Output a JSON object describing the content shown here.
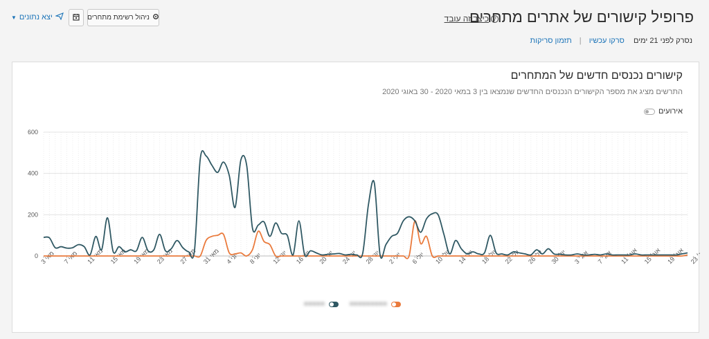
{
  "header": {
    "title": "פרופיל קישורים של אתרים מתחרים",
    "how_it_works": "כיצד זה עובד",
    "crawled_label": "נסרק לפני 21 ימים",
    "crawl_now": "סרקו עכשיו",
    "schedule_crawls": "תזמון סריקות",
    "manage_competitors": "ניהול רשימת מתחרים",
    "export": "יצא נתונים"
  },
  "panel": {
    "title": "קישורים נכנסים חדשים של המתחרים",
    "subtitle": "התרשים מציג את מספר הקישורים הנכנסים החדשים שנמצאו בין 3 במאי 2020 - 30 באוגי 2020",
    "events_label": "אירועים"
  },
  "colors": {
    "series_dark": "#2f5863",
    "series_orange": "#ea7a3c",
    "link": "#1a73b8",
    "grid": "#e6e6e6"
  },
  "chart_data": {
    "type": "line",
    "title": "קישורים נכנסים חדשים של המתחרים",
    "ylim": [
      0,
      600
    ],
    "yticks": [
      "0",
      "200",
      "400",
      "600"
    ],
    "x_tick_labels": [
      "מאי 3",
      "מאי 7",
      "מאי 11",
      "מאי 15",
      "מאי 19",
      "מאי 23",
      "מאי 27",
      "מאי 31",
      "יוני 4",
      "יוני 8",
      "יוני 12",
      "יוני 16",
      "יוני 20",
      "יוני 24",
      "יוני 28",
      "יולי 2",
      "יולי 6",
      "יולי 10",
      "יולי 14",
      "יולי 18",
      "יולי 22",
      "יולי 26",
      "יולי 30",
      "אוג׳ 3",
      "אוג׳ 7",
      "אוג׳ 11",
      "אוג׳ 15",
      "אוג׳ 19",
      "אוג׳ 23",
      "אוג׳ 27"
    ],
    "grid": true,
    "legend_position": "bottom-center",
    "series": [
      {
        "color": "dark",
        "values": [
          90,
          88,
          40,
          45,
          38,
          40,
          55,
          45,
          5,
          95,
          30,
          185,
          20,
          45,
          20,
          30,
          25,
          90,
          25,
          30,
          105,
          25,
          35,
          75,
          40,
          20,
          25,
          470,
          485,
          440,
          405,
          455,
          390,
          235,
          465,
          440,
          135,
          150,
          165,
          95,
          160,
          110,
          100,
          5,
          170,
          5,
          25,
          15,
          5,
          8,
          10,
          12,
          5,
          8,
          5,
          12,
          250,
          355,
          5,
          55,
          95,
          110,
          170,
          190,
          170,
          115,
          180,
          205,
          200,
          105,
          10,
          75,
          35,
          10,
          20,
          10,
          15,
          100,
          15,
          10,
          5,
          20,
          15,
          10,
          5,
          30,
          10,
          35,
          10,
          8,
          5,
          5,
          10,
          5,
          5,
          8,
          5,
          10,
          5,
          5,
          5,
          5,
          10,
          5,
          5,
          5,
          5,
          5,
          5,
          5,
          10,
          15
        ]
      },
      {
        "color": "orange",
        "values": [
          0,
          0,
          0,
          0,
          0,
          0,
          0,
          0,
          0,
          0,
          0,
          0,
          0,
          0,
          0,
          0,
          0,
          0,
          0,
          0,
          0,
          0,
          0,
          0,
          0,
          0,
          0,
          0,
          75,
          95,
          100,
          105,
          15,
          10,
          15,
          0,
          30,
          120,
          70,
          55,
          0,
          0,
          0,
          0,
          0,
          0,
          0,
          0,
          0,
          0,
          0,
          0,
          0,
          0,
          0,
          0,
          0,
          0,
          0,
          0,
          0,
          0,
          0,
          0,
          170,
          60,
          95,
          0,
          0,
          0,
          0,
          0,
          0,
          0,
          0,
          0,
          0,
          0,
          0,
          0,
          0,
          0,
          0,
          0,
          0,
          0,
          0,
          0,
          0,
          0,
          0,
          0,
          0,
          0,
          0,
          0,
          0,
          0,
          0,
          0,
          0,
          0,
          0,
          0,
          0,
          0,
          0,
          0,
          0,
          0,
          0,
          5
        ]
      }
    ]
  }
}
